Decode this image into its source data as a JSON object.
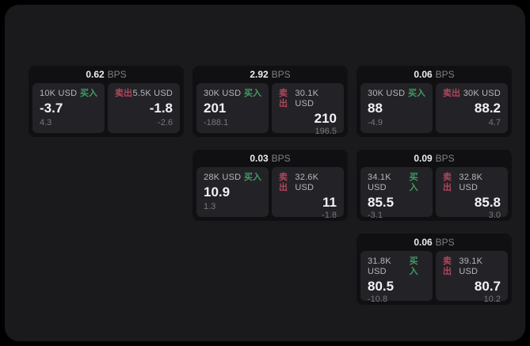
{
  "labels": {
    "bps_unit": "BPS",
    "buy": "买入",
    "sell": "卖出"
  },
  "colors": {
    "buy": "#3f9c63",
    "sell": "#b2455c",
    "surface": "#1a1a1c",
    "card": "#101013",
    "panel": "#232327"
  },
  "cards": [
    {
      "bps": "0.62",
      "buy": {
        "size": "10K USD",
        "value": "-3.7",
        "sub": "4.3"
      },
      "sell": {
        "size": "5.5K USD",
        "value": "-1.8",
        "sub": "-2.6"
      }
    },
    {
      "bps": "2.92",
      "buy": {
        "size": "30K USD",
        "value": "201",
        "sub": "-188.1"
      },
      "sell": {
        "size": "30.1K USD",
        "value": "210",
        "sub": "196.5"
      }
    },
    {
      "bps": "0.06",
      "buy": {
        "size": "30K USD",
        "value": "88",
        "sub": "-4.9"
      },
      "sell": {
        "size": "30K USD",
        "value": "88.2",
        "sub": "4.7"
      }
    },
    {
      "bps": "0.03",
      "buy": {
        "size": "28K USD",
        "value": "10.9",
        "sub": "1.3"
      },
      "sell": {
        "size": "32.6K USD",
        "value": "11",
        "sub": "-1.8"
      }
    },
    {
      "bps": "0.09",
      "buy": {
        "size": "34.1K USD",
        "value": "85.5",
        "sub": "-3.1"
      },
      "sell": {
        "size": "32.8K USD",
        "value": "85.8",
        "sub": "3.0"
      }
    },
    {
      "bps": "0.06",
      "buy": {
        "size": "31.8K USD",
        "value": "80.5",
        "sub": "-10.8"
      },
      "sell": {
        "size": "39.1K USD",
        "value": "80.7",
        "sub": "10.2"
      }
    }
  ]
}
